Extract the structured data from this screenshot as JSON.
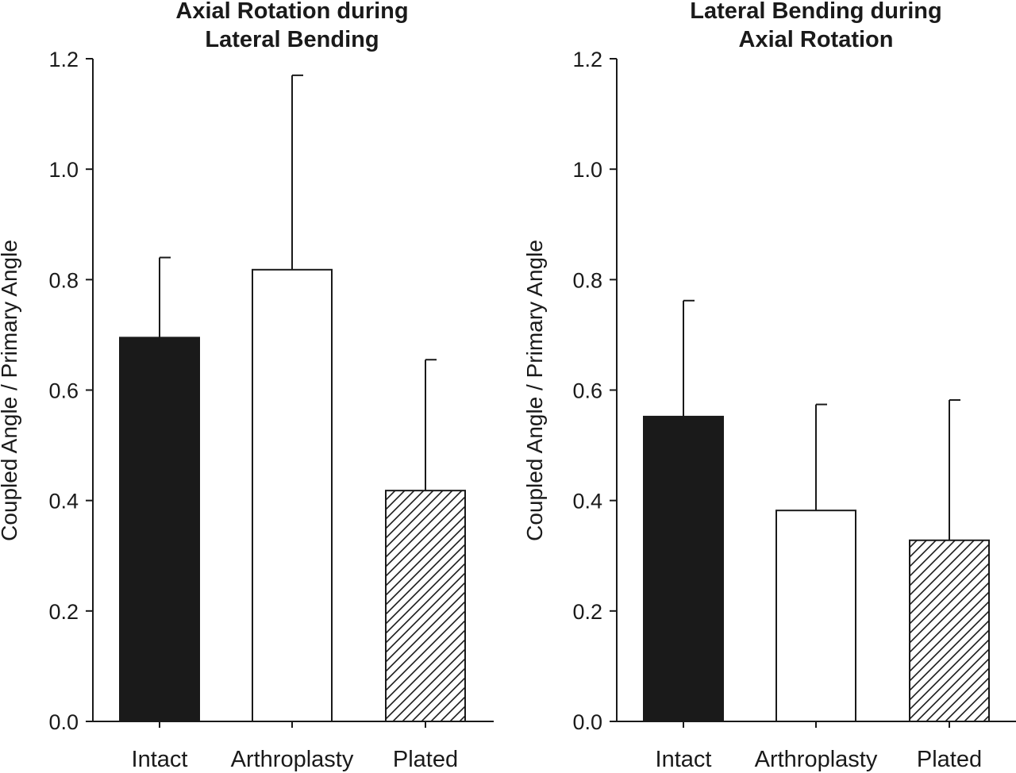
{
  "chart_data": [
    {
      "type": "bar",
      "title_lines": [
        "Axial Rotation during",
        "Lateral Bending"
      ],
      "ylabel": "Coupled Angle / Primary Angle",
      "xlabel": "",
      "ylim": [
        0,
        1.2
      ],
      "yticks": [
        "0.0",
        "0.2",
        "0.4",
        "0.6",
        "0.8",
        "1.0",
        "1.2"
      ],
      "categories": [
        "Intact",
        "Arthroplasty",
        "Plated"
      ],
      "values": [
        0.695,
        0.818,
        0.418
      ],
      "errors": [
        0.145,
        0.352,
        0.237
      ],
      "fills": [
        "solid",
        "empty",
        "hatched"
      ],
      "grid": false
    },
    {
      "type": "bar",
      "title_lines": [
        "Lateral Bending during",
        "Axial Rotation"
      ],
      "ylabel": "Coupled Angle / Primary Angle",
      "xlabel": "",
      "ylim": [
        0,
        1.2
      ],
      "yticks": [
        "0.0",
        "0.2",
        "0.4",
        "0.6",
        "0.8",
        "1.0",
        "1.2"
      ],
      "categories": [
        "Intact",
        "Arthroplasty",
        "Plated"
      ],
      "values": [
        0.552,
        0.382,
        0.328
      ],
      "errors": [
        0.21,
        0.192,
        0.254
      ],
      "fills": [
        "solid",
        "empty",
        "hatched"
      ],
      "grid": false
    }
  ],
  "colors": {
    "ink": "#1a1a1a",
    "background": "#ffffff"
  }
}
